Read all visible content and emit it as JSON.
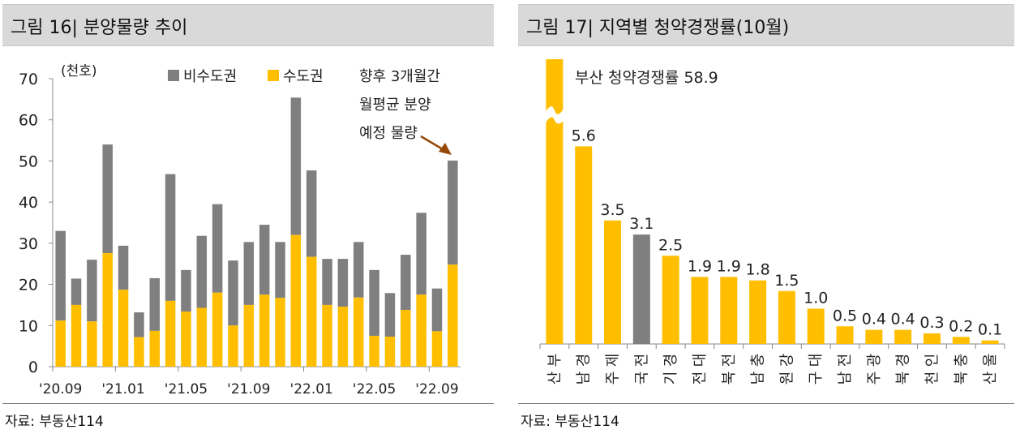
{
  "colors": {
    "gray": "#7f7f7f",
    "yellow": "#ffbf00",
    "arrow": "#984807",
    "title_bg": "#d9d9d9"
  },
  "left": {
    "title": "그림 16| 분양물량 추이",
    "unit": "(천호)",
    "legend": {
      "non_capital": "비수도권",
      "capital": "수도권"
    },
    "annotation": [
      "향후 3개월간",
      "월평균 분양",
      "예정 물량"
    ],
    "source": "자료: 부동산114"
  },
  "right": {
    "title": "그림 17| 지역별 청약경쟁률(10월)",
    "callout": "부산 청약경쟁률 58.9",
    "source": "자료: 부동산114"
  },
  "chart_data": [
    {
      "type": "bar",
      "stacked": true,
      "title": "분양물량 추이",
      "ylabel": "(천호)",
      "ylim": [
        0,
        70
      ],
      "yticks": [
        0,
        10,
        20,
        30,
        40,
        50,
        60,
        70
      ],
      "x_tick_labels": [
        "'20.09",
        "'21.01",
        "'21.05",
        "'21.09",
        "'22.01",
        "'22.05",
        "'22.09"
      ],
      "categories": [
        "2020.09",
        "2020.10",
        "2020.11",
        "2020.12",
        "2021.01",
        "2021.02",
        "2021.03",
        "2021.04",
        "2021.05",
        "2021.06",
        "2021.07",
        "2021.08",
        "2021.09",
        "2021.10",
        "2021.11",
        "2021.12",
        "2022.01",
        "2022.02",
        "2022.03",
        "2022.04",
        "2022.05",
        "2022.06",
        "2022.07",
        "2022.08",
        "2022.09"
      ],
      "series": [
        {
          "name": "수도권",
          "values": [
            11.2,
            15.0,
            11.0,
            27.6,
            18.7,
            7.2,
            8.7,
            16.0,
            13.4,
            14.3,
            18.0,
            10.0,
            15.0,
            17.5,
            16.7,
            32.0,
            26.7,
            15.0,
            14.6,
            16.8,
            7.5,
            7.3,
            13.8,
            17.5,
            8.6
          ]
        },
        {
          "name": "비수도권",
          "values": [
            21.8,
            6.4,
            15.0,
            26.4,
            10.7,
            6.0,
            12.8,
            30.8,
            10.1,
            17.5,
            21.5,
            15.8,
            15.3,
            17.0,
            13.6,
            33.4,
            21.0,
            11.2,
            11.6,
            13.5,
            16.0,
            10.6,
            13.4,
            19.9,
            10.4
          ]
        }
      ],
      "annotation_value": {
        "label": "향후 3개월간 월평균 분양 예정 물량",
        "capital": 24.8,
        "non_capital": 25.3
      },
      "legend_position": "top"
    },
    {
      "type": "bar",
      "title": "지역별 청약경쟁률(10월)",
      "categories": [
        "부산",
        "경남",
        "제주",
        "전국",
        "경기",
        "대전",
        "전북",
        "충남",
        "강원",
        "대구",
        "전남",
        "광주",
        "경북",
        "인천",
        "충북",
        "울산"
      ],
      "values": [
        58.9,
        5.6,
        3.5,
        3.1,
        2.5,
        1.9,
        1.9,
        1.8,
        1.5,
        1.0,
        0.5,
        0.4,
        0.4,
        0.3,
        0.2,
        0.1
      ],
      "value_labels": [
        "",
        "5.6",
        "3.5",
        "3.1",
        "2.5",
        "1.9",
        "1.9",
        "1.8",
        "1.5",
        "1.0",
        "0.5",
        "0.4",
        "0.4",
        "0.3",
        "0.2",
        "0.1"
      ],
      "highlight": "전국",
      "axis_break": "부산",
      "ylim": [
        0,
        6.5
      ]
    }
  ]
}
